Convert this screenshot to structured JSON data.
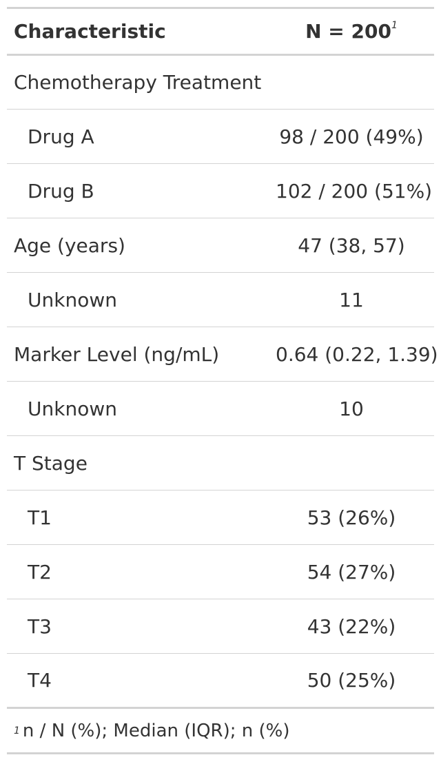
{
  "table": {
    "header": {
      "characteristic": "Characteristic",
      "n_label": "N = 200",
      "n_footnote_mark": "1"
    },
    "rows": [
      {
        "label": "Chemotherapy Treatment",
        "value": "",
        "indent": false
      },
      {
        "label": "Drug A",
        "value": "98 / 200 (49%)",
        "indent": true
      },
      {
        "label": "Drug B",
        "value": "102 / 200 (51%)",
        "indent": true
      },
      {
        "label": "Age (years)",
        "value": "47 (38, 57)",
        "indent": false
      },
      {
        "label": "Unknown",
        "value": "11",
        "indent": true
      },
      {
        "label": "Marker Level (ng/mL)",
        "value": "0.64 (0.22, 1.39)",
        "indent": false
      },
      {
        "label": "Unknown",
        "value": "10",
        "indent": true
      },
      {
        "label": "T Stage",
        "value": "",
        "indent": false
      },
      {
        "label": "T1",
        "value": "53 (26%)",
        "indent": true
      },
      {
        "label": "T2",
        "value": "54 (27%)",
        "indent": true
      },
      {
        "label": "T3",
        "value": "43 (22%)",
        "indent": true
      },
      {
        "label": "T4",
        "value": "50 (25%)",
        "indent": true
      }
    ],
    "footnote": {
      "mark": "1",
      "text": "n / N (%); Median (IQR); n (%)"
    }
  },
  "colors": {
    "text": "#333333",
    "rule": "#d3d3d3",
    "background": "#ffffff"
  }
}
